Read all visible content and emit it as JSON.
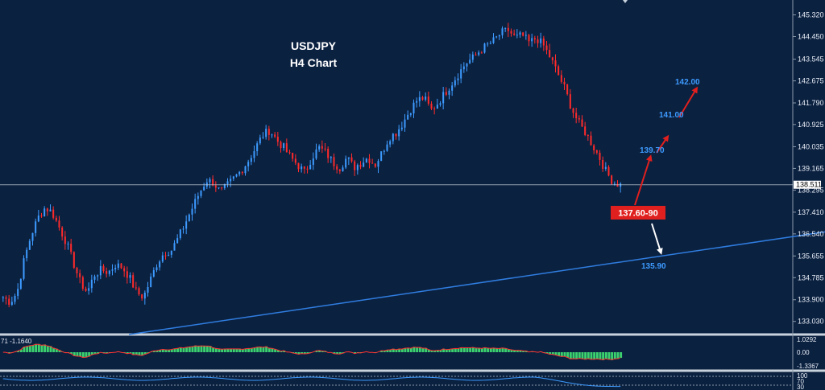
{
  "chart_data": {
    "type": "candlestick",
    "title": "USDJPY",
    "subtitle": "H4 Chart",
    "y_ticks": [
      "145.320",
      "144.450",
      "143.545",
      "142.675",
      "141.790",
      "140.925",
      "140.035",
      "139.165",
      "138.295",
      "137.410",
      "136.540",
      "135.655",
      "134.785",
      "133.900",
      "133.030"
    ],
    "y_tick_values": [
      145.32,
      144.45,
      143.545,
      142.675,
      141.79,
      140.925,
      140.035,
      139.165,
      138.295,
      137.41,
      136.54,
      135.655,
      134.785,
      133.9,
      133.03
    ],
    "ylim": [
      132.86,
      145.53
    ],
    "current_price": "138.511",
    "current_price_value": 138.511,
    "candles_approx_close": [
      134.0,
      133.8,
      134.2,
      135.5,
      136.5,
      137.2,
      137.6,
      137.4,
      136.8,
      136.2,
      135.4,
      134.6,
      134.2,
      134.9,
      135.1,
      135.0,
      135.3,
      135.2,
      134.8,
      134.2,
      134.0,
      134.7,
      135.4,
      135.8,
      135.9,
      136.4,
      137.0,
      137.6,
      138.2,
      138.7,
      138.6,
      138.2,
      138.5,
      138.8,
      139.1,
      139.5,
      140.0,
      140.5,
      140.7,
      140.3,
      140.0,
      139.6,
      139.3,
      139.0,
      139.6,
      140.0,
      139.8,
      139.4,
      139.2,
      139.6,
      139.2,
      139.4,
      139.6,
      139.3,
      139.8,
      140.4,
      140.6,
      141.0,
      141.5,
      141.9,
      142.0,
      141.5,
      141.8,
      142.2,
      142.6,
      143.0,
      143.4,
      143.6,
      143.9,
      144.1,
      144.3,
      144.6,
      144.7,
      144.4,
      144.5,
      144.2,
      144.4,
      144.1,
      143.6,
      143.0,
      142.4,
      141.6,
      141.0,
      140.6,
      140.1,
      139.6,
      139.0,
      138.6,
      138.5
    ],
    "trendline": {
      "start": [
        0.0,
        132.98
      ],
      "end": [
        1.0,
        136.62
      ]
    },
    "entry_zone": "137.60-90",
    "targets": [
      "139.70",
      "141.00",
      "142.00"
    ],
    "support_target": "135.90",
    "indicator1": {
      "label": "71 -1.1640",
      "ticks": [
        "1.0292",
        "0.00",
        "-1.3367"
      ]
    },
    "indicator2": {
      "ticks": [
        "100",
        "70",
        "30"
      ]
    }
  },
  "colors": {
    "background": "#0b2140",
    "bull": "#3d9bff",
    "bear": "#ff2a2a",
    "trendline": "#2f7de0",
    "entry_box": "#e0201e",
    "histogram": "#3bd16f"
  }
}
